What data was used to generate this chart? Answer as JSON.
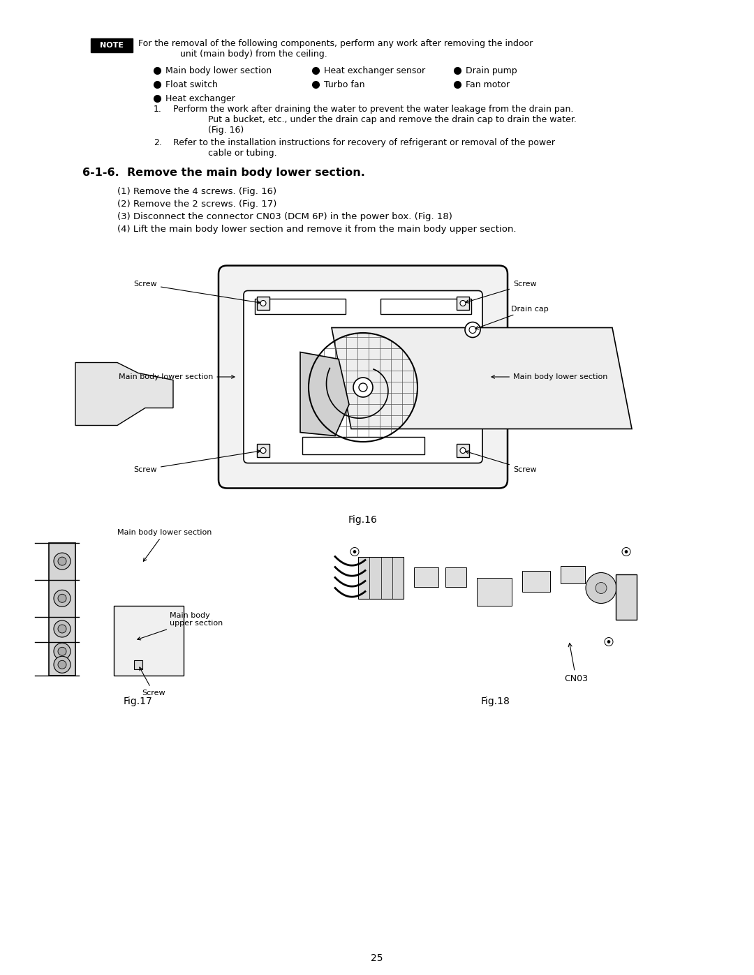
{
  "page_width": 10.8,
  "page_height": 13.97,
  "bg_color": "#ffffff",
  "note_label": "NOTE",
  "note_line1": "For the removal of the following components, perform any work after removing the indoor",
  "note_line2": "unit (main body) from the ceiling.",
  "bullet_col1": [
    "Main body lower section",
    "Float switch",
    "Heat exchanger"
  ],
  "bullet_col2": [
    "Heat exchanger sensor",
    "Turbo fan"
  ],
  "bullet_col3": [
    "Drain pump",
    "Fan motor"
  ],
  "num1_line1": "Perform the work after draining the water to prevent the water leakage from the drain pan.",
  "num1_line2": "Put a bucket, etc., under the drain cap and remove the drain cap to drain the water.",
  "num1_line3": "(Fig. 16)",
  "num2_line1": "Refer to the installation instructions for recovery of refrigerant or removal of the power",
  "num2_line2": "cable or tubing.",
  "section_title": "6-1-6.  Remove the main body lower section.",
  "step1": "(1) Remove the 4 screws. (Fig. 16)",
  "step2": "(2) Remove the 2 screws. (Fig. 17)",
  "step3": "(3) Disconnect the connector CN03 (DCM 6P) in the power box. (Fig. 18)",
  "step4": "(4) Lift the main body lower section and remove it from the main body upper section.",
  "fig16_caption": "Fig.16",
  "fig17_caption": "Fig.17",
  "fig18_caption": "Fig.18",
  "page_number": "25"
}
